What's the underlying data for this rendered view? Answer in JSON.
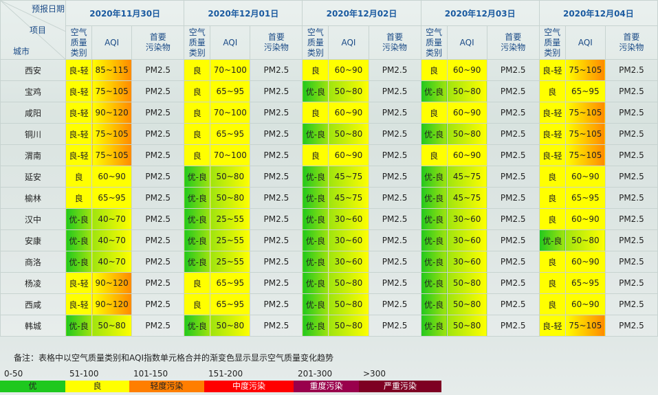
{
  "header": {
    "date_label": "预报日期",
    "item_label": "项目",
    "city_label": "城市"
  },
  "dates": [
    "2020年11月30日",
    "2020年12月01日",
    "2020年12月02日",
    "2020年12月03日",
    "2020年12月04日"
  ],
  "columns": [
    "空气\n质量\n类别",
    "AQI",
    "首要\n污染物"
  ],
  "rows": [
    {
      "city": "西安",
      "days": [
        [
          "良-轻",
          "85~115",
          "PM2.5"
        ],
        [
          "良",
          "70~100",
          "PM2.5"
        ],
        [
          "良",
          "60~90",
          "PM2.5"
        ],
        [
          "良",
          "60~90",
          "PM2.5"
        ],
        [
          "良-轻",
          "75~105",
          "PM2.5"
        ]
      ]
    },
    {
      "city": "宝鸡",
      "days": [
        [
          "良-轻",
          "75~105",
          "PM2.5"
        ],
        [
          "良",
          "65~95",
          "PM2.5"
        ],
        [
          "优-良",
          "50~80",
          "PM2.5"
        ],
        [
          "优-良",
          "50~80",
          "PM2.5"
        ],
        [
          "良",
          "65~95",
          "PM2.5"
        ]
      ]
    },
    {
      "city": "咸阳",
      "days": [
        [
          "良-轻",
          "90~120",
          "PM2.5"
        ],
        [
          "良",
          "70~100",
          "PM2.5"
        ],
        [
          "良",
          "60~90",
          "PM2.5"
        ],
        [
          "良",
          "60~90",
          "PM2.5"
        ],
        [
          "良-轻",
          "75~105",
          "PM2.5"
        ]
      ]
    },
    {
      "city": "铜川",
      "days": [
        [
          "良-轻",
          "75~105",
          "PM2.5"
        ],
        [
          "良",
          "65~95",
          "PM2.5"
        ],
        [
          "优-良",
          "50~80",
          "PM2.5"
        ],
        [
          "优-良",
          "50~80",
          "PM2.5"
        ],
        [
          "良-轻",
          "75~105",
          "PM2.5"
        ]
      ]
    },
    {
      "city": "渭南",
      "days": [
        [
          "良-轻",
          "75~105",
          "PM2.5"
        ],
        [
          "良",
          "70~100",
          "PM2.5"
        ],
        [
          "良",
          "60~90",
          "PM2.5"
        ],
        [
          "良",
          "60~90",
          "PM2.5"
        ],
        [
          "良-轻",
          "75~105",
          "PM2.5"
        ]
      ]
    },
    {
      "city": "延安",
      "days": [
        [
          "良",
          "60~90",
          "PM2.5"
        ],
        [
          "优-良",
          "50~80",
          "PM2.5"
        ],
        [
          "优-良",
          "45~75",
          "PM2.5"
        ],
        [
          "优-良",
          "45~75",
          "PM2.5"
        ],
        [
          "良",
          "60~90",
          "PM2.5"
        ]
      ]
    },
    {
      "city": "榆林",
      "days": [
        [
          "良",
          "65~95",
          "PM2.5"
        ],
        [
          "优-良",
          "50~80",
          "PM2.5"
        ],
        [
          "优-良",
          "45~75",
          "PM2.5"
        ],
        [
          "优-良",
          "45~75",
          "PM2.5"
        ],
        [
          "良",
          "65~95",
          "PM2.5"
        ]
      ]
    },
    {
      "city": "汉中",
      "days": [
        [
          "优-良",
          "40~70",
          "PM2.5"
        ],
        [
          "优-良",
          "25~55",
          "PM2.5"
        ],
        [
          "优-良",
          "30~60",
          "PM2.5"
        ],
        [
          "优-良",
          "30~60",
          "PM2.5"
        ],
        [
          "良",
          "60~90",
          "PM2.5"
        ]
      ]
    },
    {
      "city": "安康",
      "days": [
        [
          "优-良",
          "40~70",
          "PM2.5"
        ],
        [
          "优-良",
          "25~55",
          "PM2.5"
        ],
        [
          "优-良",
          "30~60",
          "PM2.5"
        ],
        [
          "优-良",
          "30~60",
          "PM2.5"
        ],
        [
          "优-良",
          "50~80",
          "PM2.5"
        ]
      ]
    },
    {
      "city": "商洛",
      "days": [
        [
          "优-良",
          "40~70",
          "PM2.5"
        ],
        [
          "优-良",
          "25~55",
          "PM2.5"
        ],
        [
          "优-良",
          "30~60",
          "PM2.5"
        ],
        [
          "优-良",
          "30~60",
          "PM2.5"
        ],
        [
          "良",
          "60~90",
          "PM2.5"
        ]
      ]
    },
    {
      "city": "杨凌",
      "days": [
        [
          "良-轻",
          "90~120",
          "PM2.5"
        ],
        [
          "良",
          "65~95",
          "PM2.5"
        ],
        [
          "优-良",
          "50~80",
          "PM2.5"
        ],
        [
          "优-良",
          "50~80",
          "PM2.5"
        ],
        [
          "良",
          "65~95",
          "PM2.5"
        ]
      ]
    },
    {
      "city": "西咸",
      "days": [
        [
          "良-轻",
          "90~120",
          "PM2.5"
        ],
        [
          "良",
          "65~95",
          "PM2.5"
        ],
        [
          "优-良",
          "50~80",
          "PM2.5"
        ],
        [
          "优-良",
          "50~80",
          "PM2.5"
        ],
        [
          "良",
          "60~90",
          "PM2.5"
        ]
      ]
    },
    {
      "city": "韩城",
      "days": [
        [
          "优-良",
          "50~80",
          "PM2.5"
        ],
        [
          "优-良",
          "50~80",
          "PM2.5"
        ],
        [
          "优-良",
          "50~80",
          "PM2.5"
        ],
        [
          "优-良",
          "50~80",
          "PM2.5"
        ],
        [
          "良-轻",
          "75~105",
          "PM2.5"
        ]
      ]
    }
  ],
  "note": "备注：表格中以空气质量类别和AQI指数单元格合并的渐变色显示显示空气质量变化趋势",
  "legend": [
    {
      "range": "0-50",
      "level": "优"
    },
    {
      "range": "51-100",
      "level": "良"
    },
    {
      "range": "101-150",
      "level": "轻度污染"
    },
    {
      "range": "151-200",
      "level": "中度污染"
    },
    {
      "range": "201-300",
      "level": "重度污染"
    },
    {
      "range": ">300",
      "level": "严重污染"
    }
  ]
}
